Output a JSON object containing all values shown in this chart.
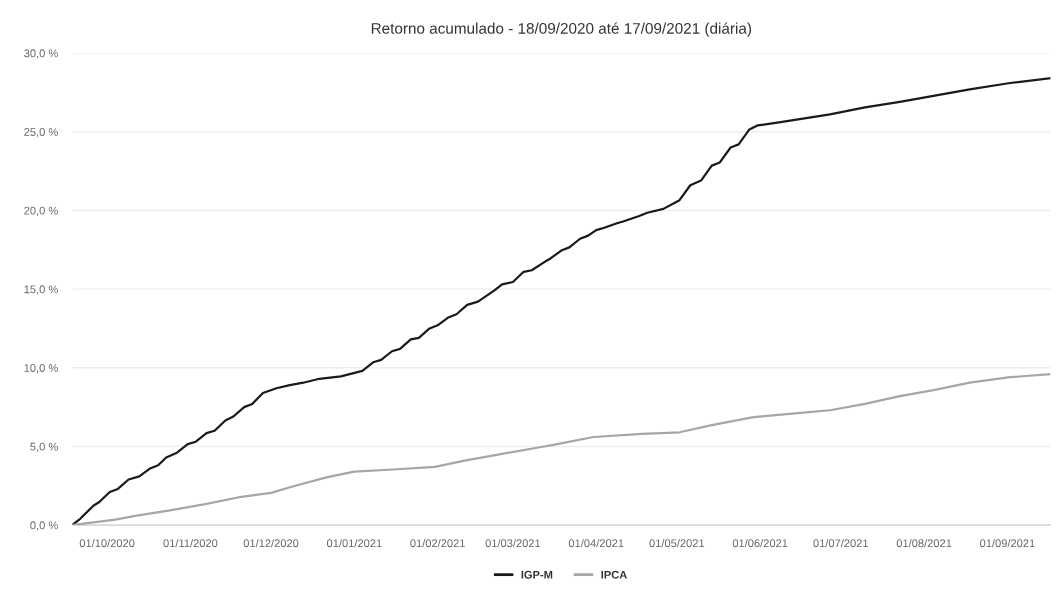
{
  "chart_data": {
    "type": "line",
    "title": "Retorno acumulado - 18/09/2020 até 17/09/2021 (diária)",
    "xlim": [
      "2020-09-18",
      "2021-09-17"
    ],
    "xticks": [
      {
        "value": "2020-10-01",
        "label": "01/10/2020"
      },
      {
        "value": "2020-11-01",
        "label": "01/11/2020"
      },
      {
        "value": "2020-12-01",
        "label": "01/12/2020"
      },
      {
        "value": "2021-01-01",
        "label": "01/01/2021"
      },
      {
        "value": "2021-02-01",
        "label": "01/02/2021"
      },
      {
        "value": "2021-03-01",
        "label": "01/03/2021"
      },
      {
        "value": "2021-04-01",
        "label": "01/04/2021"
      },
      {
        "value": "2021-05-01",
        "label": "01/05/2021"
      },
      {
        "value": "2021-06-01",
        "label": "01/06/2021"
      },
      {
        "value": "2021-07-01",
        "label": "01/07/2021"
      },
      {
        "value": "2021-08-01",
        "label": "01/08/2021"
      },
      {
        "value": "2021-09-01",
        "label": "01/09/2021"
      }
    ],
    "ylim": [
      0,
      30
    ],
    "yticks": [
      {
        "value": 0,
        "label": "0,0 %"
      },
      {
        "value": 5,
        "label": "5,0 %"
      },
      {
        "value": 10,
        "label": "10,0 %"
      },
      {
        "value": 15,
        "label": "15,0 %"
      },
      {
        "value": 20,
        "label": "20,0 %"
      },
      {
        "value": 25,
        "label": "25,0 %"
      },
      {
        "value": 30,
        "label": "30,0 %"
      }
    ],
    "grid": "y",
    "legend": "bottom",
    "marker": "none",
    "line_style": "solid",
    "series": [
      {
        "name": "IGP-M",
        "color": "#1a1a1a",
        "x": [
          "2020-09-18",
          "2020-09-21",
          "2020-09-26",
          "2020-09-28",
          "2020-10-02",
          "2020-10-05",
          "2020-10-09",
          "2020-10-13",
          "2020-10-17",
          "2020-10-20",
          "2020-10-23",
          "2020-10-27",
          "2020-10-31",
          "2020-11-03",
          "2020-11-07",
          "2020-11-10",
          "2020-11-14",
          "2020-11-17",
          "2020-11-21",
          "2020-11-24",
          "2020-11-28",
          "2020-12-03",
          "2020-12-08",
          "2020-12-13",
          "2020-12-19",
          "2020-12-27",
          "2021-01-04",
          "2021-01-08",
          "2021-01-11",
          "2021-01-15",
          "2021-01-18",
          "2021-01-22",
          "2021-01-25",
          "2021-01-29",
          "2021-02-01",
          "2021-02-05",
          "2021-02-08",
          "2021-02-12",
          "2021-02-16",
          "2021-02-22",
          "2021-02-25",
          "2021-03-01",
          "2021-03-05",
          "2021-03-08",
          "2021-03-13",
          "2021-03-15",
          "2021-03-19",
          "2021-03-22",
          "2021-03-26",
          "2021-03-29",
          "2021-04-01",
          "2021-04-04",
          "2021-04-09",
          "2021-04-11",
          "2021-04-17",
          "2021-04-20",
          "2021-04-26",
          "2021-05-02",
          "2021-05-06",
          "2021-05-10",
          "2021-05-14",
          "2021-05-17",
          "2021-05-21",
          "2021-05-24",
          "2021-05-28",
          "2021-05-31",
          "2021-06-08",
          "2021-06-27",
          "2021-07-10",
          "2021-07-23",
          "2021-08-05",
          "2021-08-18",
          "2021-09-02",
          "2021-09-17"
        ],
        "values": [
          0,
          0.4,
          1.25,
          1.45,
          2.1,
          2.3,
          2.9,
          3.1,
          3.6,
          3.8,
          4.3,
          4.6,
          5.15,
          5.3,
          5.85,
          6.0,
          6.65,
          6.9,
          7.5,
          7.7,
          8.4,
          8.7,
          8.9,
          9.05,
          9.3,
          9.45,
          9.8,
          10.35,
          10.5,
          11.05,
          11.2,
          11.8,
          11.9,
          12.5,
          12.7,
          13.2,
          13.4,
          14.0,
          14.2,
          14.9,
          15.3,
          15.45,
          16.1,
          16.2,
          16.75,
          16.95,
          17.45,
          17.65,
          18.2,
          18.4,
          18.75,
          18.9,
          19.2,
          19.3,
          19.65,
          19.85,
          20.1,
          20.65,
          21.6,
          21.9,
          22.85,
          23.05,
          24.0,
          24.2,
          25.15,
          25.4,
          25.6,
          26.1,
          26.55,
          26.9,
          27.3,
          27.7,
          28.1,
          28.4
        ]
      },
      {
        "name": "IPCA",
        "color": "#a6a6a6",
        "x": [
          "2020-09-18",
          "2020-10-04",
          "2020-10-12",
          "2020-10-25",
          "2020-11-07",
          "2020-11-20",
          "2020-12-01",
          "2020-12-09",
          "2020-12-22",
          "2021-01-01",
          "2021-01-17",
          "2021-01-31",
          "2021-02-11",
          "2021-02-24",
          "2021-03-11",
          "2021-03-16",
          "2021-03-31",
          "2021-04-18",
          "2021-05-02",
          "2021-05-14",
          "2021-05-29",
          "2021-06-14",
          "2021-06-27",
          "2021-07-10",
          "2021-07-23",
          "2021-08-05",
          "2021-08-18",
          "2021-09-02",
          "2021-09-17"
        ],
        "values": [
          0,
          0.35,
          0.6,
          0.95,
          1.35,
          1.8,
          2.05,
          2.45,
          3.05,
          3.4,
          3.55,
          3.7,
          4.1,
          4.5,
          4.95,
          5.1,
          5.6,
          5.8,
          5.9,
          6.35,
          6.85,
          7.1,
          7.3,
          7.7,
          8.2,
          8.6,
          9.05,
          9.4,
          9.6
        ]
      }
    ]
  }
}
